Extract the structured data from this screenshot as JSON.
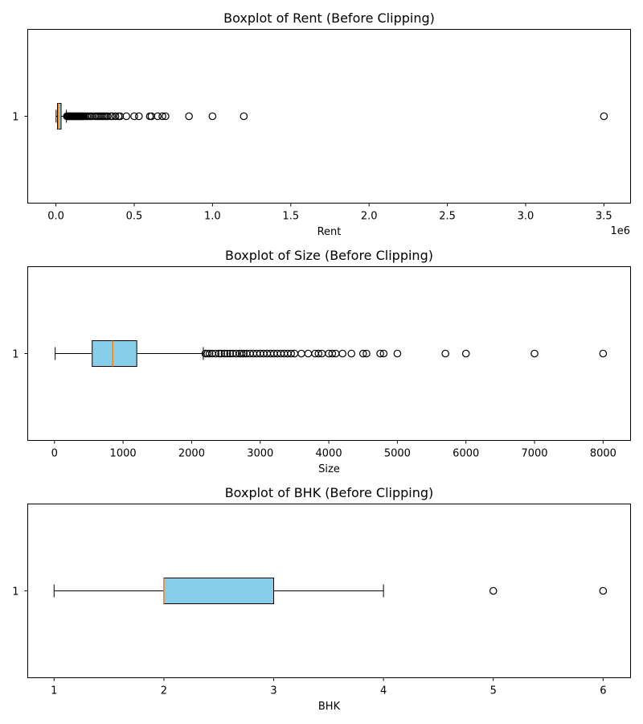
{
  "colors": {
    "box_fill": "#87ceeb",
    "median": "#ff7f0e",
    "flier_edge": "#000000"
  },
  "chart_data": [
    {
      "type": "boxplot",
      "title": "Boxplot of Rent (Before Clipping)",
      "xlabel": "Rent",
      "ylabel": "",
      "scale_note": "1e6",
      "orientation": "horizontal",
      "xlim": [
        -0.18,
        3.67
      ],
      "xticks": [
        0.0,
        0.5,
        1.0,
        1.5,
        2.0,
        2.5,
        3.0,
        3.5
      ],
      "xtick_labels": [
        "0.0",
        "0.5",
        "1.0",
        "1.5",
        "2.0",
        "2.5",
        "3.0",
        "3.5"
      ],
      "ytick_labels": [
        "1"
      ],
      "whisker_low": 0.0012,
      "q1": 0.01,
      "median": 0.016,
      "q3": 0.033,
      "whisker_high": 0.067,
      "fliers": [
        0.07,
        0.075,
        0.08,
        0.085,
        0.09,
        0.095,
        0.1,
        0.105,
        0.11,
        0.115,
        0.12,
        0.125,
        0.13,
        0.135,
        0.14,
        0.145,
        0.15,
        0.155,
        0.16,
        0.165,
        0.17,
        0.175,
        0.18,
        0.19,
        0.2,
        0.21,
        0.22,
        0.23,
        0.25,
        0.26,
        0.27,
        0.28,
        0.29,
        0.3,
        0.31,
        0.32,
        0.33,
        0.35,
        0.36,
        0.38,
        0.4,
        0.41,
        0.45,
        0.5,
        0.53,
        0.6,
        0.61,
        0.65,
        0.68,
        0.7,
        0.85,
        1.0,
        1.2,
        3.5
      ]
    },
    {
      "type": "boxplot",
      "title": "Boxplot of Size (Before Clipping)",
      "xlabel": "Size",
      "ylabel": "",
      "orientation": "horizontal",
      "xlim": [
        -390,
        8400
      ],
      "xticks": [
        0,
        1000,
        2000,
        3000,
        4000,
        5000,
        6000,
        7000,
        8000
      ],
      "xtick_labels": [
        "0",
        "1000",
        "2000",
        "3000",
        "4000",
        "5000",
        "6000",
        "7000",
        "8000"
      ],
      "ytick_labels": [
        "1"
      ],
      "whisker_low": 10,
      "q1": 550,
      "median": 850,
      "q3": 1200,
      "whisker_high": 2170,
      "fliers": [
        2200,
        2230,
        2260,
        2300,
        2350,
        2400,
        2430,
        2480,
        2520,
        2560,
        2600,
        2650,
        2700,
        2730,
        2760,
        2800,
        2850,
        2900,
        2950,
        3000,
        3050,
        3100,
        3150,
        3200,
        3250,
        3300,
        3350,
        3400,
        3450,
        3500,
        3600,
        3700,
        3800,
        3850,
        3900,
        4000,
        4050,
        4100,
        4200,
        4330,
        4500,
        4550,
        4750,
        4800,
        5000,
        5700,
        6000,
        7000,
        8000
      ]
    },
    {
      "type": "boxplot",
      "title": "Boxplot of BHK (Before Clipping)",
      "xlabel": "BHK",
      "ylabel": "",
      "orientation": "horizontal",
      "xlim": [
        0.76,
        6.25
      ],
      "xticks": [
        1,
        2,
        3,
        4,
        5,
        6
      ],
      "xtick_labels": [
        "1",
        "2",
        "3",
        "4",
        "5",
        "6"
      ],
      "ytick_labels": [
        "1"
      ],
      "whisker_low": 1,
      "q1": 2,
      "median": 2,
      "q3": 3,
      "whisker_high": 4,
      "fliers": [
        5,
        6
      ]
    }
  ]
}
